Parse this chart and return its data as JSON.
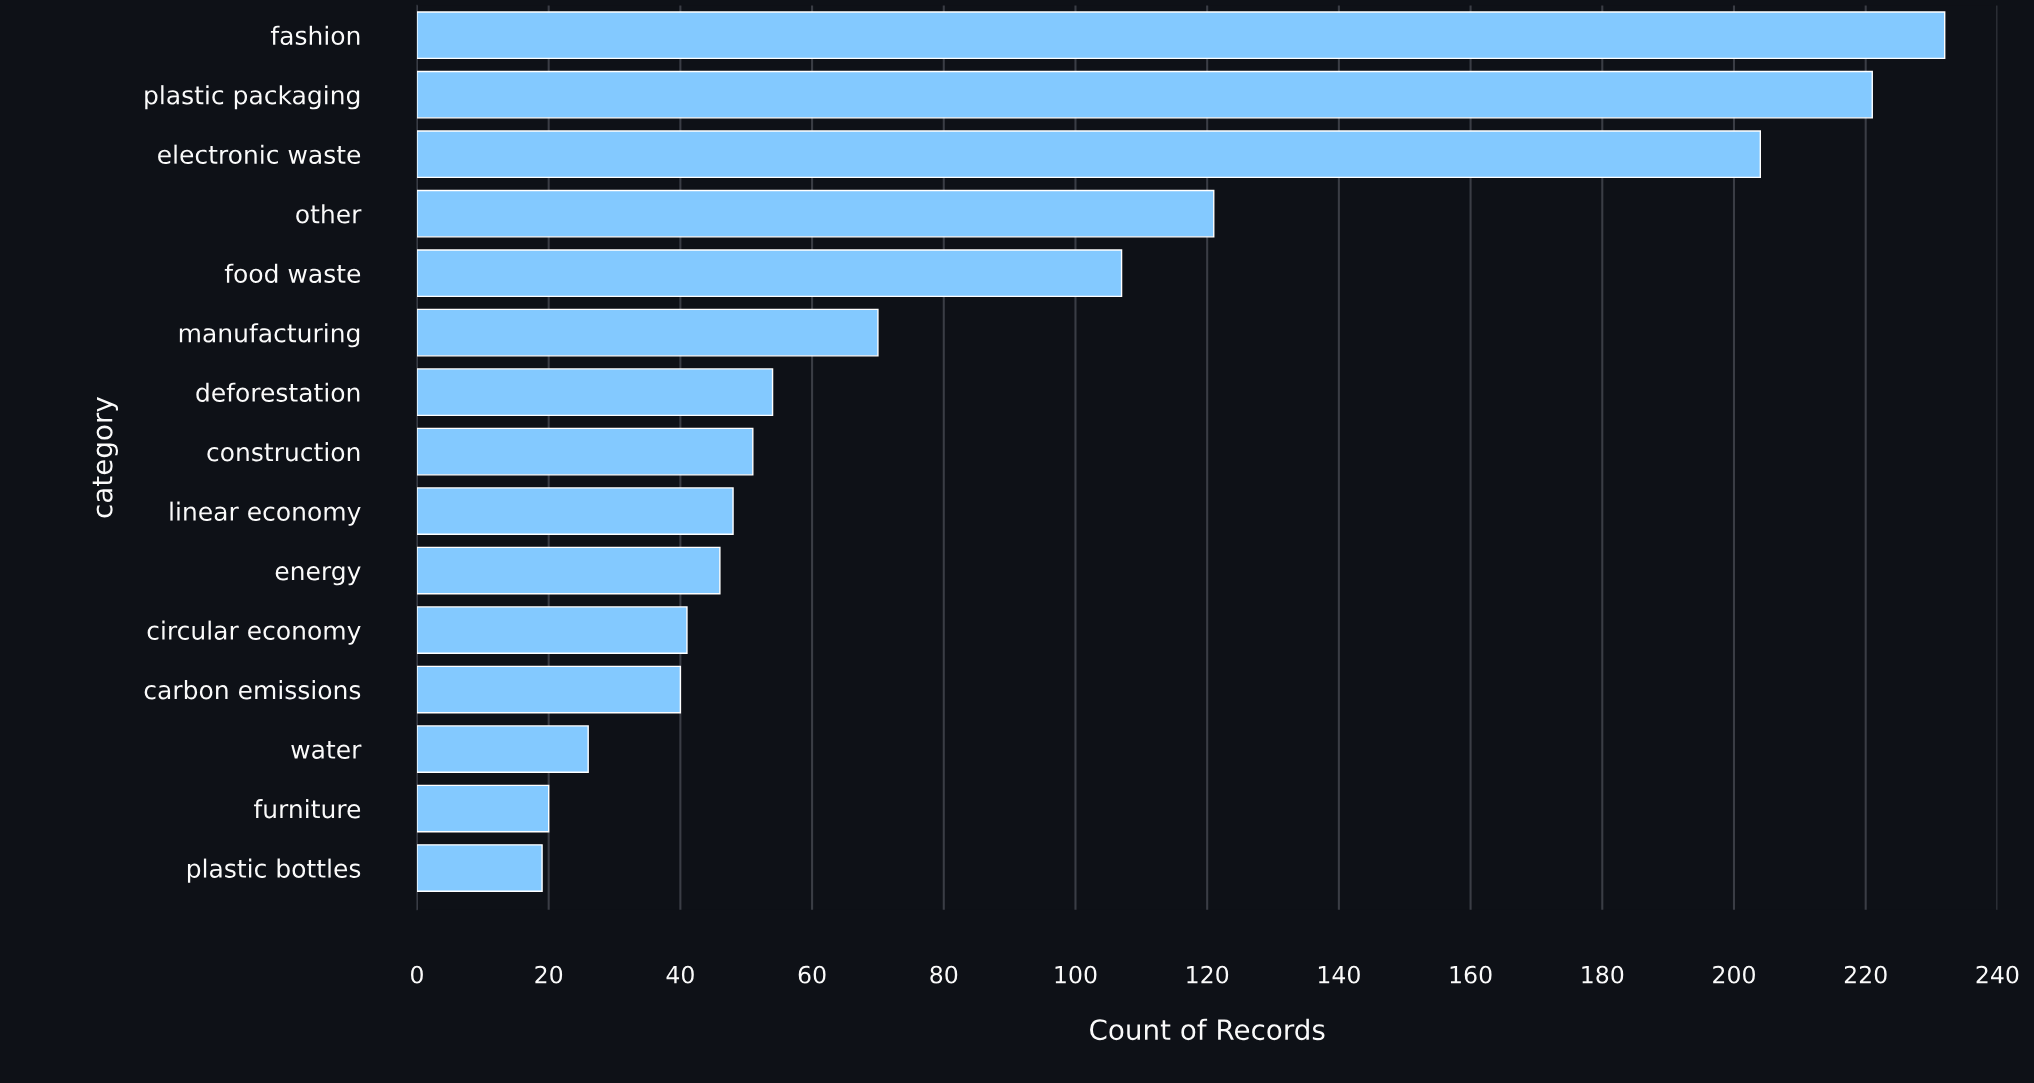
{
  "chart_data": {
    "type": "bar",
    "orientation": "horizontal",
    "xlabel": "Count of Records",
    "ylabel": "category",
    "categories": [
      "fashion",
      "plastic packaging",
      "electronic waste",
      "other",
      "food waste",
      "manufacturing",
      "deforestation",
      "construction",
      "linear economy",
      "energy",
      "circular economy",
      "carbon emissions",
      "water",
      "furniture",
      "plastic bottles"
    ],
    "values": [
      232,
      221,
      204,
      121,
      107,
      70,
      54,
      51,
      48,
      46,
      41,
      40,
      26,
      20,
      19
    ],
    "color": "#83c9ff",
    "xlim": [
      0,
      240
    ],
    "xticks": [
      0,
      20,
      40,
      60,
      80,
      100,
      120,
      140,
      160,
      180,
      200,
      220,
      240
    ],
    "grid": "x"
  }
}
